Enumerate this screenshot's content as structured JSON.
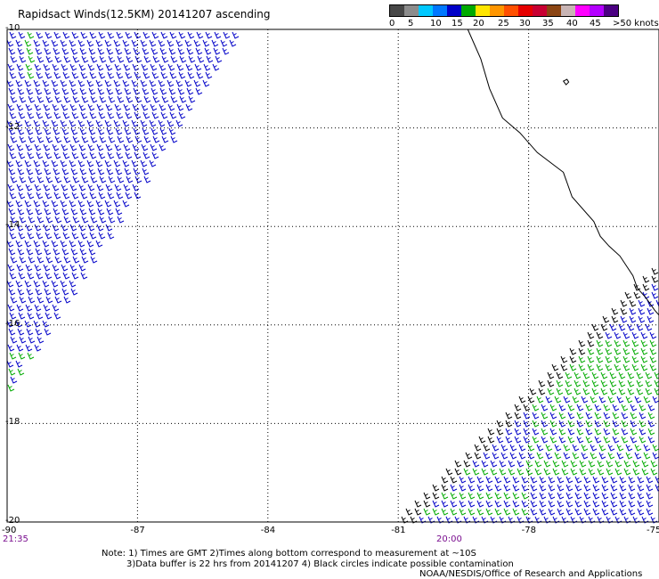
{
  "title": "Rapidsact Winds(12.5KM) 20141207 ascending",
  "legend": {
    "labels": [
      "0",
      "5",
      "10",
      "15",
      "20",
      "25",
      "30",
      "35",
      "40",
      "45",
      ">50 knots"
    ],
    "colors": [
      "#474747",
      "#8c8c8c",
      "#00c8ff",
      "#0078ff",
      "#0000c8",
      "#00aa00",
      "#ffe600",
      "#ff9600",
      "#ff5000",
      "#e60000",
      "#c80032",
      "#8b4513",
      "#c8b4b4",
      "#ff00ff",
      "#b400ff",
      "#4b0082"
    ]
  },
  "map": {
    "lat_labels": [
      "-10",
      "-12",
      "-14",
      "-16",
      "-18",
      "-20"
    ],
    "lon_labels": [
      "-90",
      "-87",
      "-84",
      "-81",
      "-78",
      "-75"
    ],
    "lat_range": [
      -20,
      -10
    ],
    "lon_range": [
      -90,
      -75
    ],
    "times": [
      "21:35",
      "20:00"
    ],
    "grid": true,
    "coastline_color": "#000000",
    "wind_colors": {
      "black": "#000000",
      "blue": "#0000c8",
      "green": "#00aa00"
    }
  },
  "notes": {
    "line1": "Note: 1) Times are GMT 2)Times along bottom correspond to measurement at ~10S",
    "line2": "3)Data buffer is 22 hrs from 20141207 4) Black circles indicate possible contamination",
    "credit": "NOAA/NESDIS/Office of Research and Applications"
  }
}
